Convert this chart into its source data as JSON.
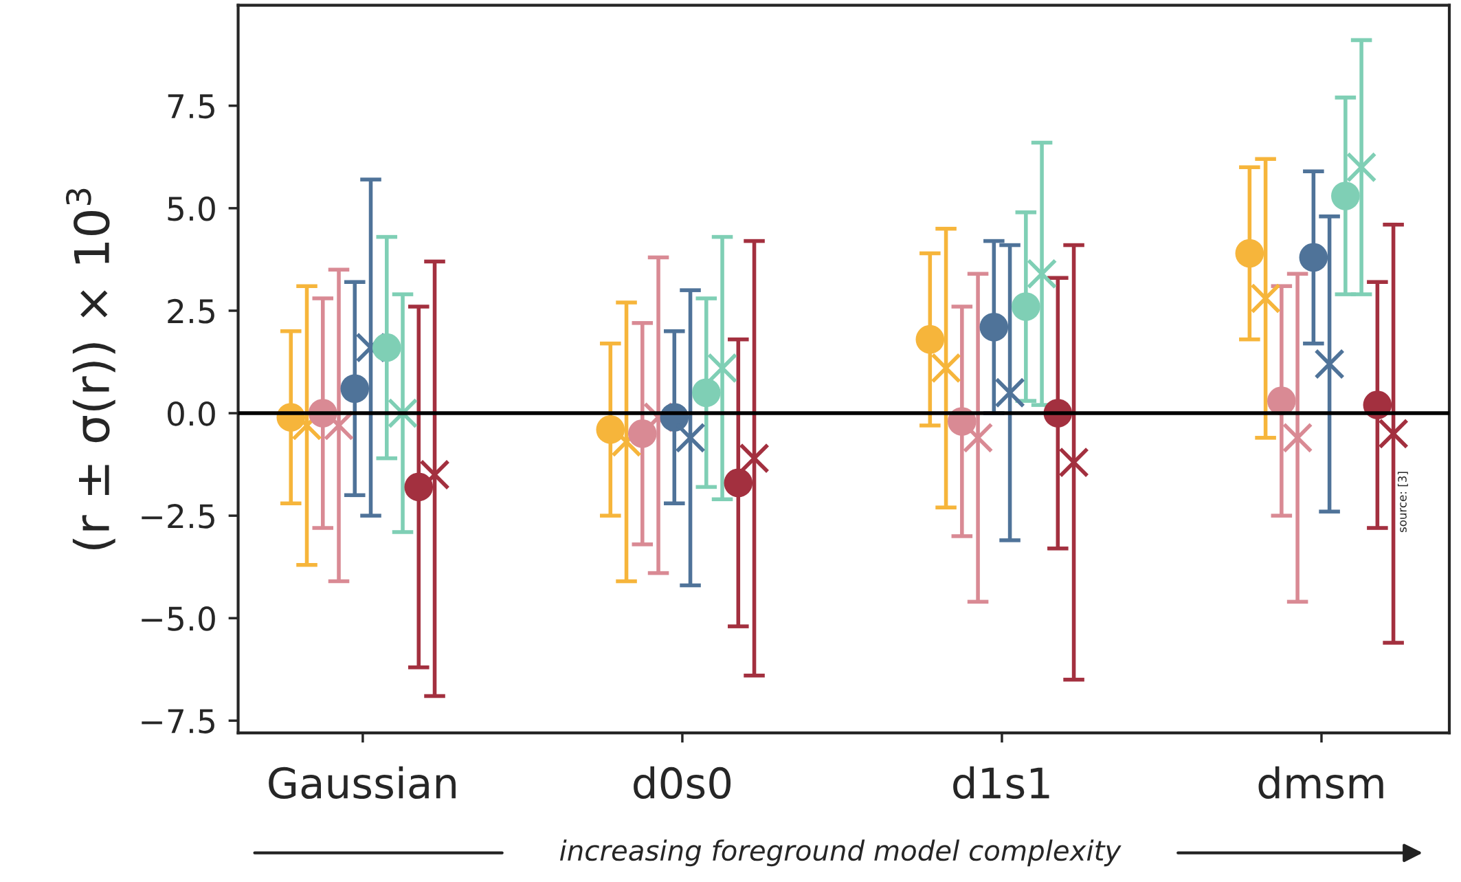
{
  "chart_data": {
    "type": "scatter",
    "categories": [
      "Gaussian",
      "d0s0",
      "d1s1",
      "dmsm"
    ],
    "ylabel": "(r ± σ(r)) × 10$^{3}$",
    "xlabel": "increasing foreground model complexity",
    "annotations": [
      "source: [3]"
    ],
    "ylim": [
      -7.8,
      9.95
    ],
    "yticks": [
      {
        "value": -7.5,
        "label": "−7.5"
      },
      {
        "value": -5.0,
        "label": "−5.0"
      },
      {
        "value": -2.5,
        "label": "−2.5"
      },
      {
        "value": 0,
        "label": "0.0"
      },
      {
        "value": 2.5,
        "label": "2.5"
      },
      {
        "value": 5.0,
        "label": "5.0"
      },
      {
        "value": 7.5,
        "label": "7.5"
      }
    ],
    "ref_lines": [
      {
        "axis": "y",
        "value": 0,
        "color": "#000000"
      }
    ],
    "grid": false,
    "legend": false,
    "series": [
      {
        "color": "#f6b53b",
        "marker": "circle",
        "values": [
          -0.1,
          -0.4,
          1.8,
          3.9
        ],
        "errors": [
          [
            -2.2,
            2.0
          ],
          [
            -2.5,
            1.7
          ],
          [
            -0.3,
            3.9
          ],
          [
            1.8,
            6.0
          ]
        ]
      },
      {
        "color": "#f6b53b",
        "marker": "cross",
        "values": [
          -0.3,
          -0.7,
          1.1,
          2.8
        ],
        "errors": [
          [
            -3.7,
            3.1
          ],
          [
            -4.1,
            2.7
          ],
          [
            -2.3,
            4.5
          ],
          [
            -0.6,
            6.2
          ]
        ]
      },
      {
        "color": "#d98a94",
        "marker": "circle",
        "values": [
          0.0,
          -0.5,
          -0.2,
          0.3
        ],
        "errors": [
          [
            -2.8,
            2.8
          ],
          [
            -3.2,
            2.2
          ],
          [
            -3.0,
            2.6
          ],
          [
            -2.5,
            3.1
          ]
        ]
      },
      {
        "color": "#d98a94",
        "marker": "cross",
        "values": [
          -0.3,
          -0.1,
          -0.6,
          -0.6
        ],
        "errors": [
          [
            -4.1,
            3.5
          ],
          [
            -3.9,
            3.8
          ],
          [
            -4.6,
            3.4
          ],
          [
            -4.6,
            3.4
          ]
        ]
      },
      {
        "color": "#4f7399",
        "marker": "circle",
        "values": [
          0.6,
          -0.1,
          2.1,
          3.8
        ],
        "errors": [
          [
            -2.0,
            3.2
          ],
          [
            -2.2,
            2.0
          ],
          [
            0.0,
            4.2
          ],
          [
            1.7,
            5.9
          ]
        ]
      },
      {
        "color": "#4f7399",
        "marker": "cross",
        "values": [
          1.6,
          -0.6,
          0.5,
          1.2
        ],
        "errors": [
          [
            -2.5,
            5.7
          ],
          [
            -4.2,
            3.0
          ],
          [
            -3.1,
            4.1
          ],
          [
            -2.4,
            4.8
          ]
        ]
      },
      {
        "color": "#7fcfb5",
        "marker": "circle",
        "values": [
          1.6,
          0.5,
          2.6,
          5.3
        ],
        "errors": [
          [
            -1.1,
            4.3
          ],
          [
            -1.8,
            2.8
          ],
          [
            0.3,
            4.9
          ],
          [
            2.9,
            7.7
          ]
        ]
      },
      {
        "color": "#7fcfb5",
        "marker": "cross",
        "values": [
          0.0,
          1.1,
          3.4,
          6.0
        ],
        "errors": [
          [
            -2.9,
            2.9
          ],
          [
            -2.1,
            4.3
          ],
          [
            0.2,
            6.6
          ],
          [
            2.9,
            9.1
          ]
        ]
      },
      {
        "color": "#a3303f",
        "marker": "circle",
        "values": [
          -1.8,
          -1.7,
          0.0,
          0.2
        ],
        "errors": [
          [
            -6.2,
            2.6
          ],
          [
            -5.2,
            1.8
          ],
          [
            -3.3,
            3.3
          ],
          [
            -2.8,
            3.2
          ]
        ]
      },
      {
        "color": "#a3303f",
        "marker": "cross",
        "values": [
          -1.5,
          -1.1,
          -1.2,
          -0.5
        ],
        "errors": [
          [
            -6.9,
            3.7
          ],
          [
            -6.4,
            4.2
          ],
          [
            -6.5,
            4.1
          ],
          [
            -5.6,
            4.6
          ]
        ]
      }
    ]
  }
}
